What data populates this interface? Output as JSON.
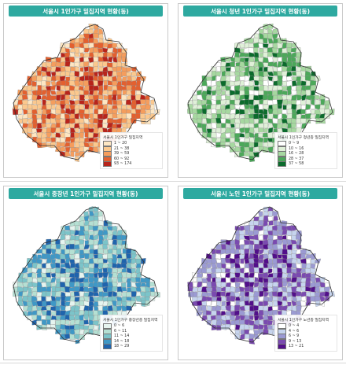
{
  "panels": [
    {
      "title": "서울시 1인가구 밀집지역 현황(동)",
      "legend_title": "서울시 1인가구 밀집지역",
      "colors": [
        "#fde6c3",
        "#fbc88e",
        "#f59d5d",
        "#e3602f",
        "#b8241b"
      ],
      "bins": [
        "1 ~ 20",
        "21 ~ 38",
        "39 ~ 59",
        "60 ~ 92",
        "93 ~ 174"
      ]
    },
    {
      "title": "서울시 청년 1인가구 밀집지역 현황(동)",
      "legend_title": "서울시 1인가구 청년층 밀집지역",
      "colors": [
        "#ffffff",
        "#dff0d8",
        "#a6d8a0",
        "#4ca85a",
        "#0b6b2c"
      ],
      "bins": [
        "0 ~ 9",
        "10 ~ 16",
        "16 ~ 28",
        "28 ~ 37",
        "37 ~ 58"
      ]
    },
    {
      "title": "서울시 중장년 1인가구 밀집지역 현황(동)",
      "legend_title": "서울시 1인가구 중장년층 밀집지역",
      "colors": [
        "#e6f4ef",
        "#b5e0d3",
        "#7cc4c9",
        "#3f98c6",
        "#1f64ad"
      ],
      "bins": [
        "0 ~ 6",
        "6 ~ 11",
        "11 ~ 14",
        "14 ~ 18",
        "18 ~ 29"
      ]
    },
    {
      "title": "서울시 노인 1인가구 밀집지역 현황(동)",
      "legend_title": "서울시 1인가구 노년층 밀집지역",
      "colors": [
        "#ffffff",
        "#c6d4ee",
        "#9b9ad3",
        "#7a4ab0",
        "#520f8a"
      ],
      "bins": [
        "0 ~ 4",
        "4 ~ 6",
        "6 ~ 9",
        "9 ~ 13",
        "13 ~ 21"
      ]
    }
  ]
}
